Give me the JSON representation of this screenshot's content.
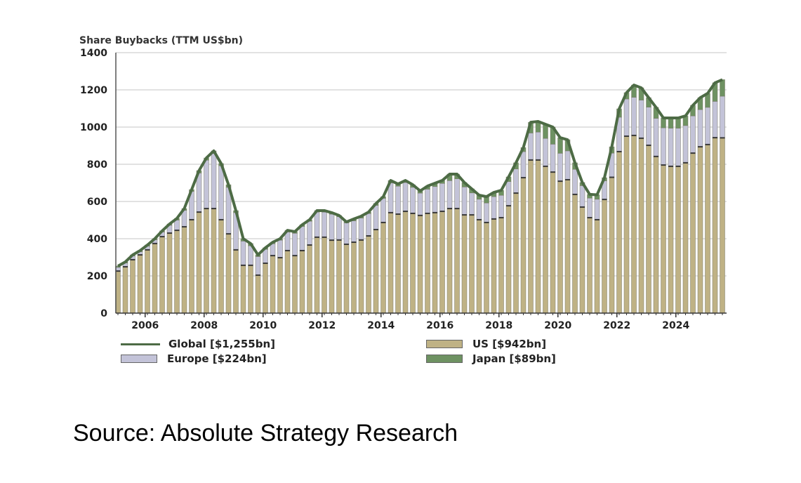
{
  "source_text": "Source: Absolute Strategy Research",
  "colors": {
    "us": "#bfb285",
    "europe": "#c3c3d8",
    "japan": "#6e9262",
    "global_line": "#4d6b45",
    "grid": "#d8d8d8",
    "axis": "#555555"
  },
  "chart_data": {
    "type": "bar",
    "stacked": true,
    "title": "Share Buybacks (TTM US$bn)",
    "xlabel": "",
    "ylabel": "Share Buybacks (TTM US$bn)",
    "ylim": [
      0,
      1400
    ],
    "yticks": [
      "0",
      "200",
      "400",
      "600",
      "800",
      "1000",
      "1200",
      "1400"
    ],
    "ytick_values": [
      0,
      200,
      400,
      600,
      800,
      1000,
      1200,
      1400
    ],
    "xticks": [
      "2006",
      "2008",
      "2010",
      "2012",
      "2014",
      "2016",
      "2018",
      "2020",
      "2022",
      "2024"
    ],
    "xtick_years": [
      2006,
      2008,
      2010,
      2012,
      2014,
      2016,
      2018,
      2020,
      2022,
      2024
    ],
    "start": "2005Q1",
    "frequency": "quarterly",
    "grid": true,
    "legend_position": "bottom",
    "legend": [
      {
        "key": "global",
        "label": "Global [$1,255bn]",
        "kind": "line"
      },
      {
        "key": "us",
        "label": "US [$942bn]",
        "kind": "box"
      },
      {
        "key": "europe",
        "label": "Europe [$224bn]",
        "kind": "box"
      },
      {
        "key": "japan",
        "label": "Japan [$89bn]",
        "kind": "box"
      }
    ],
    "series": [
      {
        "name": "US",
        "key": "us",
        "values": [
          226,
          249,
          287,
          313,
          340,
          374,
          411,
          430,
          445,
          464,
          502,
          543,
          562,
          562,
          502,
          426,
          340,
          257,
          257,
          204,
          268,
          309,
          298,
          336,
          309,
          336,
          366,
          408,
          408,
          392,
          393,
          370,
          381,
          393,
          415,
          449,
          487,
          540,
          532,
          547,
          536,
          525,
          536,
          540,
          547,
          562,
          562,
          528,
          528,
          502,
          487,
          506,
          513,
          577,
          645,
          728,
          823,
          823,
          789,
          758,
          709,
          717,
          638,
          570,
          513,
          502,
          611,
          730,
          868,
          951,
          955,
          940,
          902,
          842,
          796,
          789,
          789,
          808,
          860,
          894,
          906,
          943,
          942
        ]
      },
      {
        "name": "Europe",
        "key": "europe",
        "values": [
          20,
          20,
          20,
          17,
          20,
          20,
          25,
          42,
          55,
          88,
          152,
          210,
          260,
          296,
          290,
          250,
          200,
          130,
          105,
          100,
          75,
          64,
          94,
          100,
          120,
          130,
          128,
          135,
          135,
          140,
          125,
          115,
          115,
          118,
          120,
          130,
          130,
          160,
          150,
          155,
          140,
          120,
          130,
          140,
          150,
          150,
          160,
          150,
          118,
          110,
          105,
          120,
          120,
          130,
          130,
          140,
          145,
          150,
          150,
          150,
          150,
          155,
          135,
          115,
          105,
          110,
          100,
          130,
          185,
          200,
          205,
          205,
          205,
          205,
          200,
          205,
          205,
          200,
          200,
          200,
          200,
          195,
          224
        ]
      },
      {
        "name": "Japan",
        "key": "japan",
        "values": [
          7,
          6,
          6,
          6,
          6,
          6,
          6,
          7,
          9,
          10,
          10,
          13,
          12,
          14,
          12,
          14,
          11,
          13,
          12,
          9,
          8,
          8,
          8,
          9,
          9,
          9,
          8,
          8,
          8,
          8,
          7,
          5,
          10,
          10,
          8,
          10,
          9,
          13,
          12,
          11,
          14,
          12,
          17,
          18,
          16,
          35,
          25,
          24,
          22,
          22,
          34,
          23,
          27,
          25,
          33,
          22,
          58,
          57,
          76,
          92,
          84,
          60,
          35,
          17,
          20,
          24,
          17,
          34,
          45,
          34,
          66,
          66,
          51,
          59,
          53,
          55,
          55,
          52,
          57,
          64,
          75,
          100,
          89
        ]
      }
    ],
    "global_total": [
      253,
      275,
      313,
      336,
      366,
      400,
      442,
      479,
      509,
      562,
      664,
      766,
      834,
      872,
      804,
      690,
      551,
      400,
      374,
      313,
      351,
      381,
      400,
      445,
      438,
      475,
      502,
      551,
      551,
      540,
      525,
      490,
      506,
      521,
      543,
      589,
      626,
      713,
      694,
      713,
      690,
      657,
      683,
      698,
      713,
      747,
      747,
      702,
      668,
      634,
      626,
      649,
      660,
      732,
      808,
      890,
      1026,
      1030,
      1015,
      1000,
      943,
      932,
      808,
      702,
      638,
      636,
      728,
      894,
      1098,
      1185,
      1226,
      1211,
      1158,
      1106,
      1049,
      1049,
      1049,
      1060,
      1117,
      1158,
      1181,
      1238,
      1255
    ]
  }
}
